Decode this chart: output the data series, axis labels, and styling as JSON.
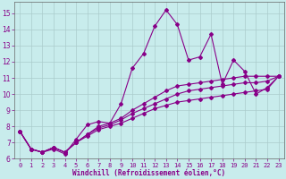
{
  "xlabel": "Windchill (Refroidissement éolien,°C)",
  "bg_color": "#c8ecec",
  "line_color": "#880088",
  "grid_color": "#aacccc",
  "xlim": [
    -0.5,
    23.5
  ],
  "ylim": [
    6.0,
    15.7
  ],
  "yticks": [
    6,
    7,
    8,
    9,
    10,
    11,
    12,
    13,
    14,
    15
  ],
  "xticks": [
    0,
    1,
    2,
    3,
    4,
    5,
    6,
    7,
    8,
    9,
    10,
    11,
    12,
    13,
    14,
    15,
    16,
    17,
    18,
    19,
    20,
    21,
    22,
    23
  ],
  "series1": [
    [
      0,
      7.7
    ],
    [
      1,
      6.6
    ],
    [
      2,
      6.4
    ],
    [
      3,
      6.6
    ],
    [
      4,
      6.3
    ],
    [
      5,
      7.2
    ],
    [
      6,
      8.1
    ],
    [
      7,
      8.3
    ],
    [
      8,
      8.2
    ],
    [
      9,
      9.4
    ],
    [
      10,
      11.6
    ],
    [
      11,
      12.5
    ],
    [
      12,
      14.2
    ],
    [
      13,
      15.2
    ],
    [
      14,
      14.3
    ],
    [
      15,
      12.1
    ],
    [
      16,
      12.3
    ],
    [
      17,
      13.7
    ],
    [
      18,
      10.6
    ],
    [
      19,
      12.1
    ],
    [
      20,
      11.4
    ],
    [
      21,
      10.0
    ],
    [
      22,
      10.4
    ],
    [
      23,
      11.1
    ]
  ],
  "line2": [
    [
      0,
      7.7
    ],
    [
      1,
      6.6
    ],
    [
      2,
      6.4
    ],
    [
      3,
      6.7
    ],
    [
      4,
      6.4
    ],
    [
      5,
      7.0
    ],
    [
      6,
      7.5
    ],
    [
      7,
      8.0
    ],
    [
      8,
      8.2
    ],
    [
      9,
      8.5
    ],
    [
      10,
      9.0
    ],
    [
      11,
      9.4
    ],
    [
      12,
      9.8
    ],
    [
      13,
      10.2
    ],
    [
      14,
      10.5
    ],
    [
      15,
      10.6
    ],
    [
      16,
      10.7
    ],
    [
      17,
      10.8
    ],
    [
      18,
      10.9
    ],
    [
      19,
      11.0
    ],
    [
      20,
      11.1
    ],
    [
      21,
      11.1
    ],
    [
      22,
      11.1
    ],
    [
      23,
      11.1
    ]
  ],
  "line3": [
    [
      0,
      7.7
    ],
    [
      1,
      6.6
    ],
    [
      2,
      6.4
    ],
    [
      3,
      6.7
    ],
    [
      4,
      6.4
    ],
    [
      5,
      7.0
    ],
    [
      6,
      7.5
    ],
    [
      7,
      7.9
    ],
    [
      8,
      8.1
    ],
    [
      9,
      8.4
    ],
    [
      10,
      8.8
    ],
    [
      11,
      9.1
    ],
    [
      12,
      9.4
    ],
    [
      13,
      9.7
    ],
    [
      14,
      10.0
    ],
    [
      15,
      10.2
    ],
    [
      16,
      10.3
    ],
    [
      17,
      10.4
    ],
    [
      18,
      10.5
    ],
    [
      19,
      10.6
    ],
    [
      20,
      10.7
    ],
    [
      21,
      10.7
    ],
    [
      22,
      10.8
    ],
    [
      23,
      11.1
    ]
  ],
  "line4": [
    [
      0,
      7.7
    ],
    [
      1,
      6.6
    ],
    [
      2,
      6.4
    ],
    [
      3,
      6.7
    ],
    [
      4,
      6.4
    ],
    [
      5,
      7.0
    ],
    [
      6,
      7.4
    ],
    [
      7,
      7.8
    ],
    [
      8,
      8.0
    ],
    [
      9,
      8.2
    ],
    [
      10,
      8.5
    ],
    [
      11,
      8.8
    ],
    [
      12,
      9.1
    ],
    [
      13,
      9.3
    ],
    [
      14,
      9.5
    ],
    [
      15,
      9.6
    ],
    [
      16,
      9.7
    ],
    [
      17,
      9.8
    ],
    [
      18,
      9.9
    ],
    [
      19,
      10.0
    ],
    [
      20,
      10.1
    ],
    [
      21,
      10.2
    ],
    [
      22,
      10.3
    ],
    [
      23,
      11.1
    ]
  ]
}
